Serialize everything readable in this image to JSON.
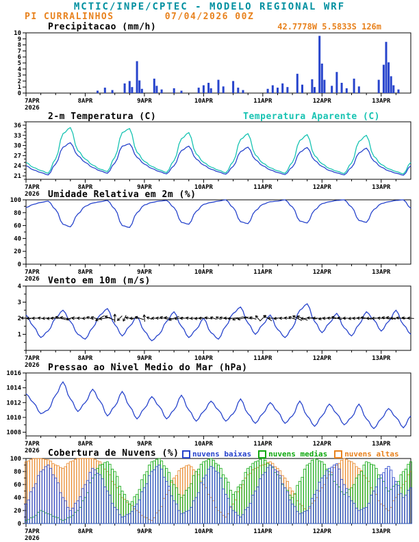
{
  "header": {
    "title": "MCTIC/INPE/CPTEC - MODELO REGIONAL WRF",
    "station": "PI CURRALINHOS",
    "run_datetime": "07/04/2026 00Z",
    "location": "42.7778W 5.5833S 126m"
  },
  "colors": {
    "teal": "#0090A0",
    "orange": "#E8821E",
    "blue": "#2744CC",
    "cyan": "#17C3B2",
    "green": "#0FA80F",
    "black": "#000000"
  },
  "x_axis": {
    "tick_labels": [
      "7APR",
      "8APR",
      "9APR",
      "10APR",
      "11APR",
      "12APR",
      "13APR"
    ],
    "year_label": "2026",
    "tick_hours": [
      0,
      24,
      48,
      72,
      96,
      120,
      144
    ],
    "hours_total": 156
  },
  "chart_data": [
    {
      "type": "bar",
      "title": "Precipitacao (mm/h)",
      "ylim": [
        0,
        10
      ],
      "yticks": [
        0,
        1,
        2,
        3,
        4,
        5,
        6,
        7,
        8,
        9,
        10
      ],
      "yminor": 0,
      "series": [
        {
          "name": "precipitacao",
          "color": "#2744CC",
          "points": [
            [
              29,
              0.4
            ],
            [
              32,
              0.9
            ],
            [
              35,
              0.5
            ],
            [
              40,
              1.6
            ],
            [
              42,
              2.0
            ],
            [
              43,
              1.0
            ],
            [
              45,
              5.3
            ],
            [
              46,
              2.1
            ],
            [
              47,
              0.7
            ],
            [
              52,
              2.4
            ],
            [
              53,
              1.2
            ],
            [
              55,
              0.6
            ],
            [
              60,
              0.8
            ],
            [
              63,
              0.4
            ],
            [
              70,
              0.9
            ],
            [
              72,
              1.3
            ],
            [
              74,
              1.7
            ],
            [
              75,
              0.8
            ],
            [
              78,
              2.2
            ],
            [
              80,
              1.1
            ],
            [
              84,
              2.0
            ],
            [
              86,
              0.9
            ],
            [
              88,
              0.5
            ],
            [
              98,
              0.7
            ],
            [
              100,
              1.3
            ],
            [
              102,
              0.9
            ],
            [
              104,
              1.6
            ],
            [
              106,
              1.0
            ],
            [
              110,
              3.2
            ],
            [
              112,
              1.4
            ],
            [
              116,
              2.3
            ],
            [
              117,
              1.0
            ],
            [
              119,
              9.5
            ],
            [
              120,
              4.9
            ],
            [
              121,
              2.2
            ],
            [
              124,
              1.2
            ],
            [
              126,
              3.5
            ],
            [
              128,
              1.7
            ],
            [
              130,
              0.8
            ],
            [
              133,
              2.4
            ],
            [
              135,
              1.1
            ],
            [
              143,
              2.2
            ],
            [
              145,
              4.7
            ],
            [
              146,
              8.5
            ],
            [
              147,
              5.1
            ],
            [
              148,
              2.8
            ],
            [
              149,
              1.3
            ],
            [
              151,
              0.6
            ]
          ]
        }
      ]
    },
    {
      "type": "line",
      "title": "2-m Temperatura (C)",
      "legend": [
        {
          "label": "Temperatura Aparente (C)",
          "color": "#17C3B2"
        }
      ],
      "ylim": [
        20,
        37
      ],
      "yticks": [
        21,
        24,
        27,
        30,
        33,
        36
      ],
      "yminor": 1,
      "x_step_hours": 3,
      "series": [
        {
          "name": "2-m temperatura",
          "color": "#2744CC",
          "values": [
            24.0,
            22.8,
            22.0,
            21.3,
            24.5,
            29.5,
            30.8,
            27.0,
            25.0,
            23.5,
            22.5,
            21.8,
            24.8,
            29.8,
            30.5,
            26.5,
            24.5,
            23.2,
            22.3,
            21.6,
            24.0,
            28.5,
            29.8,
            26.0,
            24.2,
            23.0,
            22.2,
            21.5,
            23.8,
            28.2,
            29.5,
            25.8,
            24.0,
            22.8,
            22.0,
            21.4,
            23.6,
            28.0,
            29.4,
            25.6,
            23.8,
            22.6,
            21.9,
            21.3,
            23.5,
            27.8,
            29.2,
            25.4,
            23.6,
            22.5,
            21.8,
            21.2,
            24.0
          ]
        },
        {
          "name": "temperatura aparente",
          "color": "#17C3B2",
          "values": [
            25.0,
            23.5,
            22.6,
            21.8,
            26.0,
            33.5,
            35.3,
            28.5,
            26.0,
            24.2,
            23.0,
            22.3,
            26.5,
            33.8,
            35.0,
            28.0,
            25.3,
            23.8,
            22.8,
            22.0,
            25.5,
            32.0,
            33.8,
            27.5,
            25.0,
            23.6,
            22.7,
            21.9,
            25.2,
            31.8,
            33.5,
            27.2,
            24.8,
            23.4,
            22.5,
            21.8,
            25.0,
            31.5,
            33.2,
            27.0,
            24.6,
            23.2,
            22.4,
            21.7,
            24.8,
            31.2,
            33.0,
            26.8,
            24.4,
            23.1,
            22.3,
            21.6,
            25.0
          ]
        }
      ]
    },
    {
      "type": "line",
      "title": "Umidade Relativa em 2m (%)",
      "ylim": [
        0,
        100
      ],
      "yticks": [
        0,
        20,
        40,
        60,
        80,
        100
      ],
      "yminor": 10,
      "x_step_hours": 3,
      "series": [
        {
          "name": "umidade relativa",
          "color": "#2744CC",
          "values": [
            88,
            93,
            96,
            98,
            85,
            62,
            58,
            78,
            90,
            95,
            97,
            99,
            86,
            60,
            57,
            80,
            92,
            96,
            98,
            99,
            88,
            65,
            62,
            82,
            93,
            96,
            98,
            100,
            88,
            66,
            63,
            83,
            93,
            97,
            98,
            100,
            89,
            67,
            64,
            84,
            94,
            97,
            99,
            100,
            89,
            68,
            65,
            85,
            94,
            97,
            99,
            100,
            87
          ]
        }
      ]
    },
    {
      "type": "wind",
      "title": "Vento em 10m (m/s)",
      "ylim": [
        0,
        4
      ],
      "yticks": [
        1,
        2,
        3,
        4
      ],
      "yminor": 0.5,
      "x_step_hours": 3,
      "series": [
        {
          "name": "velocidade do vento",
          "color": "#2744CC",
          "values": [
            2.2,
            1.5,
            0.8,
            1.2,
            2.0,
            2.5,
            1.8,
            1.0,
            0.7,
            1.4,
            2.2,
            2.6,
            1.6,
            0.9,
            1.5,
            2.1,
            1.2,
            0.6,
            1.0,
            1.8,
            2.4,
            1.5,
            0.8,
            1.3,
            2.0,
            1.1,
            0.7,
            1.5,
            2.3,
            2.7,
            1.7,
            1.0,
            1.6,
            2.2,
            1.3,
            0.8,
            1.4,
            2.5,
            2.9,
            1.8,
            1.1,
            1.7,
            2.3,
            1.4,
            0.9,
            1.6,
            2.4,
            1.9,
            1.2,
            1.8,
            2.5,
            1.6,
            1.0
          ]
        }
      ],
      "vectors": {
        "color": "#000000",
        "y_center": 2.0,
        "directions_deg": [
          175,
          185,
          170,
          190,
          180,
          160,
          200,
          175,
          185,
          150,
          210,
          180,
          90,
          270,
          170,
          185,
          95,
          180,
          175,
          160,
          200,
          185,
          170,
          190,
          180,
          165,
          150,
          175,
          185,
          200,
          170,
          160,
          45,
          180,
          190,
          175,
          160,
          150,
          185,
          170,
          200,
          180,
          165,
          175,
          190,
          180,
          170,
          185,
          175,
          165,
          180,
          170,
          175
        ]
      }
    },
    {
      "type": "line",
      "title": "Pressao ao Nivel Medio do Mar (hPa)",
      "ylim": [
        1007.5,
        1016
      ],
      "yticks": [
        1008,
        1010,
        1012,
        1014,
        1016
      ],
      "yminor": 1,
      "x_step_hours": 3,
      "series": [
        {
          "name": "pressao ao nivel medio do mar",
          "color": "#2744CC",
          "values": [
            1013.2,
            1012.0,
            1010.5,
            1011.0,
            1013.0,
            1014.8,
            1012.5,
            1010.8,
            1012.0,
            1013.8,
            1012.2,
            1010.2,
            1011.5,
            1013.5,
            1011.5,
            1009.8,
            1011.2,
            1012.8,
            1011.5,
            1009.8,
            1011.0,
            1013.0,
            1011.0,
            1009.5,
            1010.8,
            1012.2,
            1011.0,
            1009.5,
            1010.5,
            1012.5,
            1010.5,
            1009.2,
            1010.5,
            1012.0,
            1010.8,
            1009.2,
            1010.2,
            1012.2,
            1010.2,
            1008.8,
            1010.2,
            1011.8,
            1010.5,
            1009.0,
            1010.0,
            1011.8,
            1009.8,
            1008.5,
            1009.8,
            1011.2,
            1010.0,
            1008.6,
            1010.2
          ]
        }
      ]
    },
    {
      "type": "bar-multi",
      "title": "Cobertura de Nuvens (%)",
      "legend": [
        {
          "label": "nuvens baixas",
          "color": "#2744CC"
        },
        {
          "label": "nuvens medias",
          "color": "#0FA80F"
        },
        {
          "label": "nuvens altas",
          "color": "#E8821E"
        }
      ],
      "ylim": [
        0,
        100
      ],
      "yticks": [
        0,
        20,
        40,
        60,
        80,
        100
      ],
      "yminor": 10,
      "x_step_hours": 3,
      "draw_order": [
        2,
        1,
        0
      ],
      "series": [
        {
          "name": "nuvens baixas",
          "color": "#2744CC",
          "values": [
            30,
            55,
            80,
            90,
            70,
            40,
            20,
            35,
            60,
            85,
            75,
            50,
            25,
            10,
            15,
            30,
            55,
            80,
            90,
            65,
            35,
            15,
            20,
            40,
            70,
            88,
            78,
            45,
            20,
            10,
            25,
            50,
            75,
            90,
            80,
            55,
            30,
            15,
            20,
            45,
            70,
            85,
            92,
            60,
            35,
            20,
            25,
            50,
            75,
            88,
            65,
            40,
            55
          ]
        },
        {
          "name": "nuvens medias",
          "color": "#0FA80F",
          "values": [
            5,
            10,
            20,
            15,
            10,
            5,
            10,
            20,
            40,
            70,
            90,
            95,
            80,
            50,
            30,
            45,
            75,
            95,
            100,
            85,
            60,
            40,
            55,
            80,
            95,
            100,
            90,
            70,
            45,
            60,
            85,
            95,
            100,
            90,
            75,
            55,
            40,
            65,
            90,
            100,
            95,
            80,
            60,
            45,
            55,
            75,
            95,
            90,
            70,
            50,
            60,
            80,
            95
          ]
        },
        {
          "name": "nuvens altas",
          "color": "#E8821E",
          "values": [
            95,
            100,
            100,
            98,
            90,
            85,
            95,
            100,
            100,
            100,
            95,
            80,
            60,
            40,
            30,
            20,
            10,
            5,
            20,
            45,
            70,
            85,
            90,
            80,
            60,
            40,
            20,
            10,
            30,
            55,
            75,
            85,
            90,
            95,
            85,
            70,
            50,
            30,
            20,
            35,
            55,
            75,
            90,
            100,
            95,
            85,
            70,
            50,
            30,
            20,
            40,
            60,
            80
          ]
        }
      ]
    }
  ]
}
